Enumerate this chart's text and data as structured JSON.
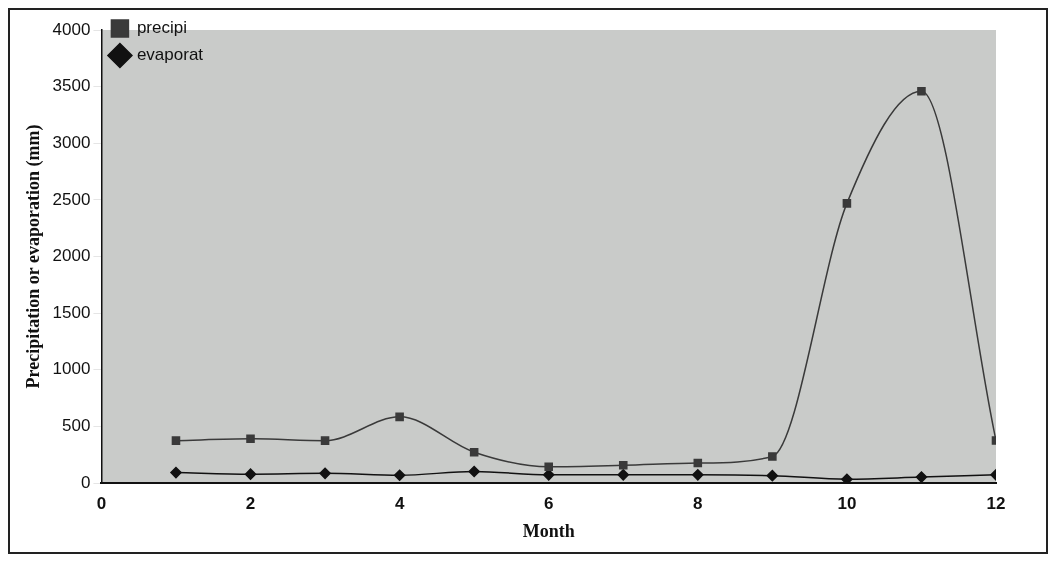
{
  "chart_data": {
    "type": "line",
    "xlabel": "Month",
    "ylabel": "Precipitation or evaporation (mm)",
    "x": [
      1,
      2,
      3,
      4,
      5,
      6,
      7,
      8,
      9,
      10,
      11,
      12
    ],
    "series": [
      {
        "name": "precipi",
        "color": "#3a3a3a",
        "marker": "square",
        "values": [
          374,
          390,
          374,
          584,
          272,
          143,
          156,
          176,
          234,
          2469,
          3459,
          375
        ]
      },
      {
        "name": "evaporat",
        "color": "#111111",
        "marker": "diamond",
        "values": [
          92,
          78,
          85,
          68,
          102,
          72,
          72,
          72,
          65,
          33,
          52,
          72
        ]
      }
    ],
    "xlim": [
      0,
      12
    ],
    "xticks": [
      0,
      2,
      4,
      6,
      8,
      10,
      12
    ],
    "ylim": [
      0,
      4000
    ],
    "yticks": [
      0,
      500,
      1000,
      1500,
      2000,
      2500,
      3000,
      3500,
      4000
    ],
    "grid": false,
    "legend": "top left"
  }
}
